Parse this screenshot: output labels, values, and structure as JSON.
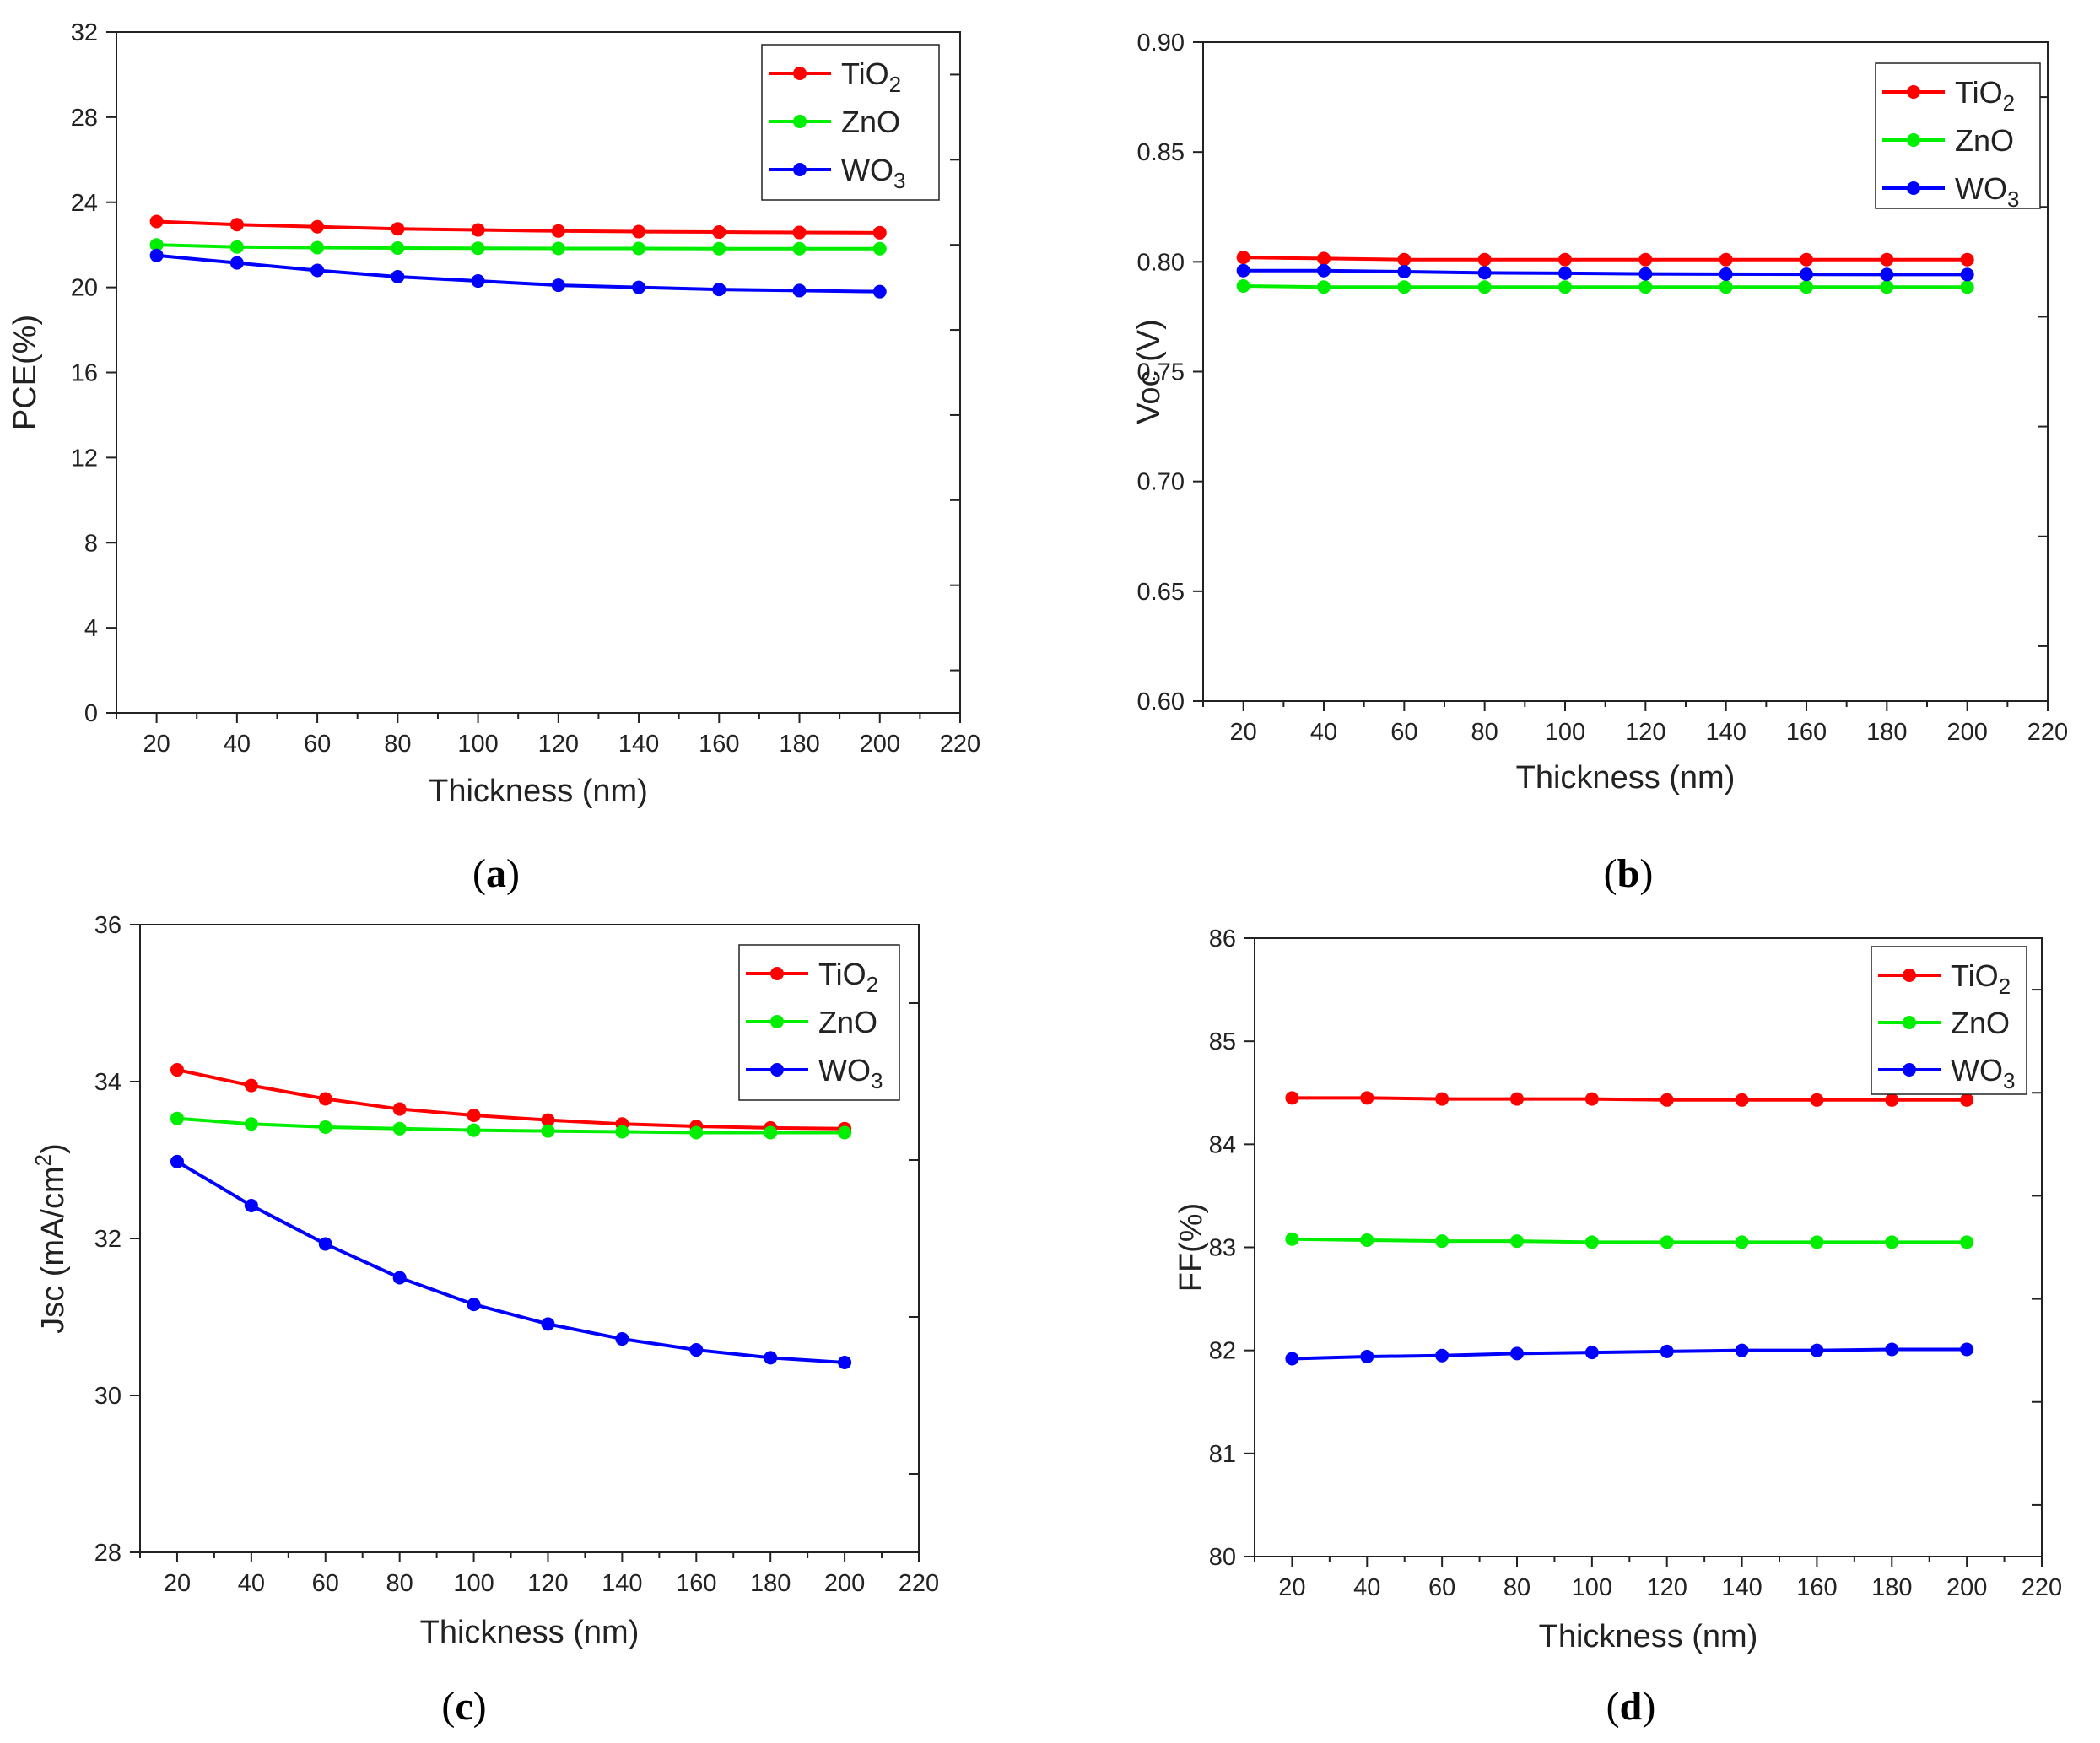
{
  "chart_data": [
    {
      "type": "line",
      "panel": "a",
      "caption_letter": "a",
      "xlabel": "Thickness (nm)",
      "ylabel": "PCE(%)",
      "xlim": [
        10,
        220
      ],
      "ylim": [
        0,
        32
      ],
      "xticks": [
        20,
        40,
        60,
        80,
        100,
        120,
        140,
        160,
        180,
        200,
        220
      ],
      "yticks": [
        0,
        4,
        8,
        12,
        16,
        20,
        24,
        28,
        32
      ],
      "ytick_labels": [
        "0",
        "4",
        "8",
        "12",
        "16",
        "20",
        "24",
        "28",
        "32"
      ],
      "right_minor_ticks": [
        2,
        6,
        10,
        14,
        18,
        22,
        26,
        30
      ],
      "legend_position": "top-right",
      "x": [
        20,
        40,
        60,
        80,
        100,
        120,
        140,
        160,
        180,
        200
      ],
      "series": [
        {
          "name": "TiO2",
          "base": "TiO",
          "sub": "2",
          "color": "#ff0000",
          "values": [
            23.1,
            22.95,
            22.85,
            22.75,
            22.7,
            22.65,
            22.62,
            22.6,
            22.58,
            22.57
          ]
        },
        {
          "name": "ZnO",
          "base": "ZnO",
          "sub": "",
          "color": "#00ee00",
          "values": [
            22.0,
            21.9,
            21.87,
            21.85,
            21.84,
            21.83,
            21.83,
            21.82,
            21.82,
            21.82
          ]
        },
        {
          "name": "WO3",
          "base": "WO",
          "sub": "3",
          "color": "#0000ff",
          "values": [
            21.5,
            21.15,
            20.8,
            20.5,
            20.3,
            20.1,
            20.0,
            19.9,
            19.85,
            19.8
          ]
        }
      ]
    },
    {
      "type": "line",
      "panel": "b",
      "caption_letter": "b",
      "xlabel": "Thickness (nm)",
      "ylabel": "Voc (V)",
      "xlim": [
        10,
        220
      ],
      "ylim": [
        0.6,
        0.9
      ],
      "xticks": [
        20,
        40,
        60,
        80,
        100,
        120,
        140,
        160,
        180,
        200,
        220
      ],
      "yticks": [
        0.6,
        0.65,
        0.7,
        0.75,
        0.8,
        0.85,
        0.9
      ],
      "ytick_labels": [
        "0.60",
        "0.65",
        "0.70",
        "0.75",
        "0.80",
        "0.85",
        "0.90"
      ],
      "right_minor_ticks": [
        0.625,
        0.675,
        0.725,
        0.775,
        0.825,
        0.875
      ],
      "legend_position": "top-right",
      "x": [
        20,
        40,
        60,
        80,
        100,
        120,
        140,
        160,
        180,
        200
      ],
      "series": [
        {
          "name": "TiO2",
          "base": "TiO",
          "sub": "2",
          "color": "#ff0000",
          "values": [
            0.802,
            0.8015,
            0.801,
            0.801,
            0.801,
            0.801,
            0.801,
            0.801,
            0.801,
            0.801
          ]
        },
        {
          "name": "ZnO",
          "base": "ZnO",
          "sub": "",
          "color": "#00ee00",
          "values": [
            0.789,
            0.7885,
            0.7885,
            0.7885,
            0.7885,
            0.7885,
            0.7885,
            0.7885,
            0.7885,
            0.7885
          ]
        },
        {
          "name": "WO3",
          "base": "WO",
          "sub": "3",
          "color": "#0000ff",
          "values": [
            0.796,
            0.796,
            0.7955,
            0.795,
            0.7948,
            0.7945,
            0.7944,
            0.7943,
            0.7942,
            0.7942
          ]
        }
      ]
    },
    {
      "type": "line",
      "panel": "c",
      "caption_letter": "c",
      "xlabel": "Thickness (nm)",
      "ylabel_base": "Jsc (mA/cm",
      "ylabel_sup": "2",
      "ylabel_end": ")",
      "xlim": [
        10,
        220
      ],
      "ylim": [
        28,
        36
      ],
      "xticks": [
        20,
        40,
        60,
        80,
        100,
        120,
        140,
        160,
        180,
        200,
        220
      ],
      "yticks": [
        28,
        30,
        32,
        34,
        36
      ],
      "ytick_labels": [
        "28",
        "30",
        "32",
        "34",
        "36"
      ],
      "right_minor_ticks": [
        29,
        31,
        33,
        35
      ],
      "legend_position": "top-right",
      "x": [
        20,
        40,
        60,
        80,
        100,
        120,
        140,
        160,
        180,
        200
      ],
      "series": [
        {
          "name": "TiO2",
          "base": "TiO",
          "sub": "2",
          "color": "#ff0000",
          "values": [
            34.15,
            33.95,
            33.78,
            33.65,
            33.57,
            33.51,
            33.46,
            33.43,
            33.41,
            33.4
          ]
        },
        {
          "name": "ZnO",
          "base": "ZnO",
          "sub": "",
          "color": "#00ee00",
          "values": [
            33.53,
            33.46,
            33.42,
            33.4,
            33.38,
            33.37,
            33.36,
            33.35,
            33.35,
            33.35
          ]
        },
        {
          "name": "WO3",
          "base": "WO",
          "sub": "3",
          "color": "#0000ff",
          "values": [
            32.98,
            32.42,
            31.93,
            31.5,
            31.16,
            30.91,
            30.72,
            30.58,
            30.48,
            30.42
          ]
        }
      ]
    },
    {
      "type": "line",
      "panel": "d",
      "caption_letter": "d",
      "xlabel": "Thickness (nm)",
      "ylabel": "FF(%)",
      "xlim": [
        10,
        220
      ],
      "ylim": [
        80,
        86
      ],
      "xticks": [
        20,
        40,
        60,
        80,
        100,
        120,
        140,
        160,
        180,
        200,
        220
      ],
      "yticks": [
        80,
        81,
        82,
        83,
        84,
        85,
        86
      ],
      "ytick_labels": [
        "80",
        "81",
        "82",
        "83",
        "84",
        "85",
        "86"
      ],
      "right_minor_ticks": [
        80.5,
        81.5,
        82.5,
        83.5,
        84.5,
        85.5
      ],
      "legend_position": "top-right",
      "x": [
        20,
        40,
        60,
        80,
        100,
        120,
        140,
        160,
        180,
        200
      ],
      "series": [
        {
          "name": "TiO2",
          "base": "TiO",
          "sub": "2",
          "color": "#ff0000",
          "values": [
            84.45,
            84.45,
            84.44,
            84.44,
            84.44,
            84.43,
            84.43,
            84.43,
            84.43,
            84.43
          ]
        },
        {
          "name": "ZnO",
          "base": "ZnO",
          "sub": "",
          "color": "#00ee00",
          "values": [
            83.08,
            83.07,
            83.06,
            83.06,
            83.05,
            83.05,
            83.05,
            83.05,
            83.05,
            83.05
          ]
        },
        {
          "name": "WO3",
          "base": "WO",
          "sub": "3",
          "color": "#0000ff",
          "values": [
            81.92,
            81.94,
            81.95,
            81.97,
            81.98,
            81.99,
            82.0,
            82.0,
            82.01,
            82.01
          ]
        }
      ]
    }
  ]
}
